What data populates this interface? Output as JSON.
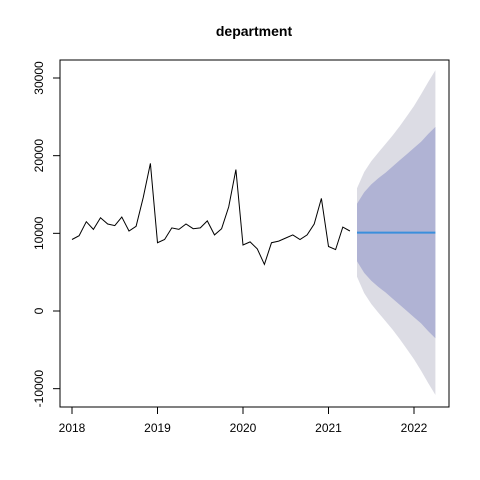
{
  "chart_data": {
    "type": "line",
    "title": "department",
    "xlabel": "",
    "ylabel": "",
    "xlim": [
      2017.85,
      2022.4
    ],
    "ylim": [
      -12500,
      32000
    ],
    "x_ticks": [
      2018,
      2019,
      2020,
      2021,
      2022
    ],
    "x_tick_labels": [
      "2018",
      "2019",
      "2020",
      "2021",
      "2022"
    ],
    "y_ticks": [
      -10000,
      0,
      10000,
      20000,
      30000
    ],
    "y_tick_labels": [
      "-10000",
      "0",
      "10000",
      "20000",
      "30000"
    ],
    "grid": false,
    "legend": "none",
    "series": [
      {
        "kind": "observed",
        "color": "#000000",
        "x": [
          2018.0,
          2018.083,
          2018.167,
          2018.25,
          2018.333,
          2018.417,
          2018.5,
          2018.583,
          2018.667,
          2018.75,
          2018.833,
          2018.917,
          2019.0,
          2019.083,
          2019.167,
          2019.25,
          2019.333,
          2019.417,
          2019.5,
          2019.583,
          2019.667,
          2019.75,
          2019.833,
          2019.917,
          2020.0,
          2020.083,
          2020.167,
          2020.25,
          2020.333,
          2020.417,
          2020.5,
          2020.583,
          2020.667,
          2020.75,
          2020.833,
          2020.917,
          2021.0,
          2021.083,
          2021.167,
          2021.25
        ],
        "y": [
          9200,
          9700,
          11500,
          10500,
          12000,
          11200,
          11000,
          12100,
          10300,
          10900,
          14600,
          19000,
          8800,
          9200,
          10700,
          10500,
          11200,
          10600,
          10700,
          11600,
          9800,
          10600,
          13400,
          18200,
          8500,
          8900,
          8000,
          6000,
          8800,
          9000,
          9400,
          9800,
          9200,
          9800,
          11200,
          14500,
          8300,
          7900,
          10800,
          10300
        ]
      },
      {
        "kind": "forecast",
        "color": "#3a8fdc",
        "x": [
          2021.333,
          2022.25
        ],
        "y": [
          10100,
          10100
        ]
      }
    ],
    "intervals": [
      {
        "level": "95%",
        "color": "#dcdce4",
        "x": [
          2021.333,
          2021.417,
          2021.5,
          2021.583,
          2021.667,
          2021.75,
          2021.833,
          2021.917,
          2022.0,
          2022.083,
          2022.167,
          2022.25
        ],
        "lower": [
          4400,
          2300,
          900,
          -200,
          -1300,
          -2400,
          -3600,
          -4900,
          -6200,
          -7700,
          -9300,
          -10800
        ],
        "upper": [
          15800,
          17900,
          19300,
          20400,
          21500,
          22600,
          23800,
          25100,
          26400,
          27900,
          29500,
          31000
        ]
      },
      {
        "level": "80%",
        "color": "#b0b3d4",
        "x": [
          2021.333,
          2021.417,
          2021.5,
          2021.583,
          2021.667,
          2021.75,
          2021.833,
          2021.917,
          2022.0,
          2022.083,
          2022.167,
          2022.25
        ],
        "lower": [
          6400,
          4900,
          3900,
          3100,
          2400,
          1600,
          800,
          0,
          -800,
          -1600,
          -2600,
          -3500
        ],
        "upper": [
          13800,
          15300,
          16300,
          17100,
          17800,
          18600,
          19400,
          20200,
          21000,
          21800,
          22800,
          23700
        ]
      }
    ]
  }
}
